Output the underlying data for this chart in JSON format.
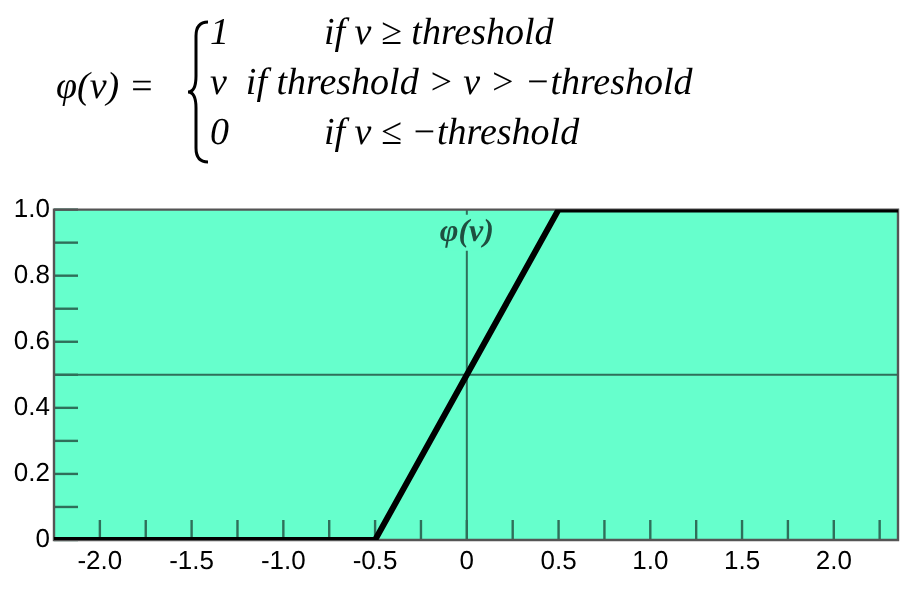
{
  "chart_data": {
    "type": "line",
    "title": "φ(v) =",
    "annotations": [
      "1          if v ≥ threshold",
      "v  if threshold > v > −threshold",
      "0          if v ≤ −threshold",
      {
        "text": "φ(v)",
        "x": 0,
        "y": 0.93
      }
    ],
    "x": [
      -2.25,
      -0.5,
      0.5,
      2.35
    ],
    "series": [
      {
        "color": "#000000",
        "values": [
          0,
          0,
          1,
          1
        ]
      }
    ],
    "xlim": [
      -2.25,
      2.35
    ],
    "xticks": [
      {
        "value": -2,
        "label": "-2.0"
      },
      {
        "value": -1.75,
        "label": null
      },
      {
        "value": -1.5,
        "label": "-1.5"
      },
      {
        "value": -1.25,
        "label": null
      },
      {
        "value": -1,
        "label": "-1.0"
      },
      {
        "value": -0.75,
        "label": null
      },
      {
        "value": -0.5,
        "label": "-0.5"
      },
      {
        "value": -0.25,
        "label": null
      },
      0,
      {
        "value": 0.25,
        "label": null
      },
      0.5,
      {
        "value": 0.75,
        "label": null
      },
      {
        "value": 1,
        "label": "1.0"
      },
      {
        "value": 1.25,
        "label": null
      },
      1.5,
      {
        "value": 1.75,
        "label": null
      },
      {
        "value": 2,
        "label": "2.0"
      },
      {
        "value": 2.25,
        "label": null
      }
    ],
    "ylim": [
      0,
      1
    ],
    "yticks": [
      0,
      {
        "value": 0.1,
        "label": null
      },
      0.2,
      {
        "value": 0.3,
        "label": null
      },
      0.4,
      {
        "value": 0.5,
        "label": null
      },
      0.6,
      {
        "value": 0.7,
        "label": null
      },
      0.8,
      {
        "value": 0.9,
        "label": null
      },
      {
        "value": 1,
        "label": "1.0"
      }
    ],
    "ref_lines": [
      {
        "axis": "x",
        "value": 0,
        "color": "#2f6f5a"
      },
      {
        "axis": "y",
        "value": 0.5,
        "color": "#2f6f5a"
      }
    ],
    "grid": false,
    "legend": false,
    "marker": "none",
    "line_style": "solid"
  }
}
